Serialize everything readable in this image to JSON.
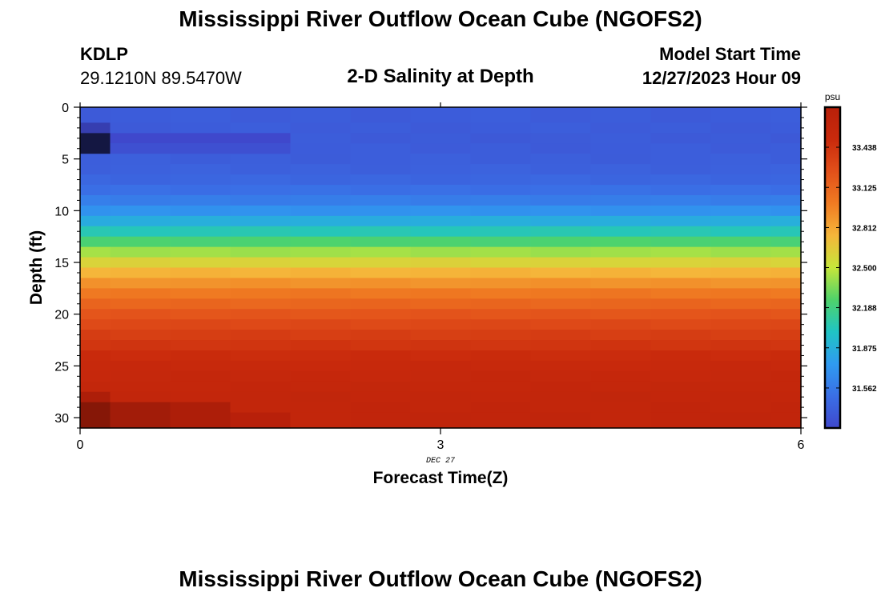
{
  "header": {
    "title": "Mississippi River Outflow Ocean Cube (NGOFS2)",
    "station": "KDLP",
    "coords": "29.1210N  89.5470W",
    "subtitle": "2-D Salinity at Depth",
    "start_label": "Model Start Time",
    "start_value": "12/27/2023 Hour 09"
  },
  "footer": {
    "title": "Mississippi River Outflow Ocean Cube (NGOFS2)"
  },
  "chart_data": {
    "type": "heatmap",
    "title": "2-D Salinity at Depth",
    "xlabel": "Forecast Time(Z)",
    "ylabel": "Depth (ft)",
    "xlim": [
      0,
      6
    ],
    "ylim": [
      0,
      31
    ],
    "y_inverted": true,
    "x_ticks": [
      "0",
      "3",
      "6"
    ],
    "y_ticks": [
      "0",
      "5",
      "10",
      "15",
      "20",
      "25",
      "30"
    ],
    "x_annotation": "DEC 27",
    "x_time_edges": [
      0,
      0.25,
      0.75,
      1.25,
      1.75,
      2.25,
      2.75,
      3.25,
      3.75,
      4.25,
      4.75,
      5.25,
      5.75,
      6
    ],
    "depth_edges": [
      0,
      1.5,
      2.5,
      3.5,
      4.5,
      5.5,
      6.5,
      7.5,
      8.5,
      9.5,
      10.5,
      11.5,
      12.5,
      13.5,
      14.5,
      15.5,
      16.5,
      17.5,
      18.5,
      19.5,
      20.5,
      21.5,
      22.5,
      23.5,
      24.5,
      25.5,
      26.5,
      27.5,
      28.5,
      29.5,
      31
    ],
    "salinity_profile_psu": [
      31.38,
      31.38,
      31.37,
      31.38,
      31.39,
      31.41,
      31.44,
      31.5,
      31.58,
      31.7,
      31.86,
      32.04,
      32.23,
      32.42,
      32.6,
      32.76,
      32.9,
      33.02,
      33.12,
      33.22,
      33.3,
      33.37,
      33.43,
      33.49,
      33.53,
      33.56,
      33.58,
      33.6,
      33.61,
      33.62
    ],
    "anomalies": [
      {
        "x": [
          0,
          0.25
        ],
        "y": [
          1.5,
          2.5
        ],
        "psu": 31.1
      },
      {
        "x": [
          0,
          0.25
        ],
        "y": [
          2.5,
          4.5
        ],
        "psu": 30.5
      },
      {
        "x": [
          0.25,
          1.75
        ],
        "y": [
          2.5,
          3.5
        ],
        "psu": 31.25
      },
      {
        "x": [
          0.25,
          1.75
        ],
        "y": [
          3.5,
          4.5
        ],
        "psu": 31.3
      },
      {
        "x": [
          0,
          0.25
        ],
        "y": [
          27.5,
          28.5
        ],
        "psu": 33.85
      },
      {
        "x": [
          0,
          0.25
        ],
        "y": [
          28.5,
          31
        ],
        "psu": 34.2
      },
      {
        "x": [
          0.25,
          0.75
        ],
        "y": [
          28.5,
          31
        ],
        "psu": 33.95
      },
      {
        "x": [
          0.75,
          1.25
        ],
        "y": [
          28.5,
          31
        ],
        "psu": 33.85
      },
      {
        "x": [
          1.25,
          1.75
        ],
        "y": [
          29.5,
          31
        ],
        "psu": 33.75
      }
    ],
    "colorbar": {
      "unit": "psu",
      "vmin": 31.25,
      "vmax": 33.75,
      "labels": [
        "33.438",
        "33.125",
        "32.812",
        "32.500",
        "32.188",
        "31.875",
        "31.562"
      ],
      "colors": [
        "#3f48cc",
        "#3a6fe6",
        "#2f9bf0",
        "#20c4c4",
        "#4fd36a",
        "#c6e63a",
        "#f5b63a",
        "#f07b22",
        "#e2501a",
        "#c92a0c",
        "#b8200a"
      ]
    }
  }
}
